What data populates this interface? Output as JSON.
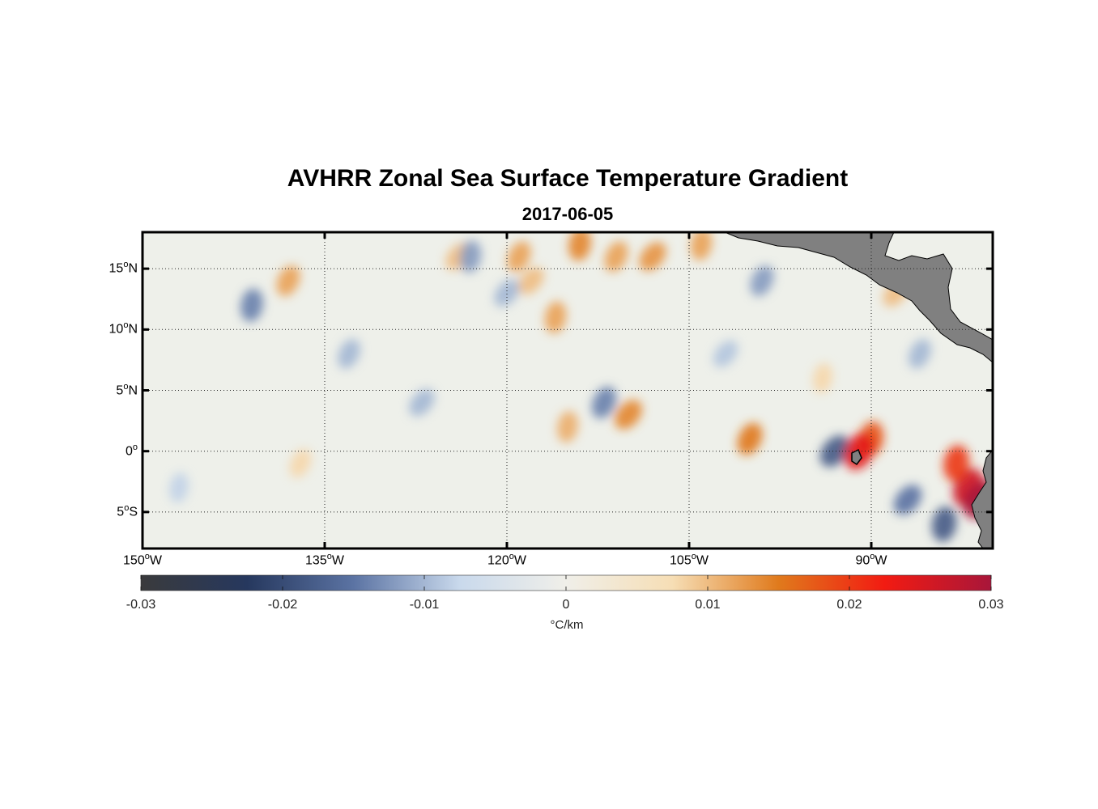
{
  "title": "AVHRR Zonal Sea Surface Temperature Gradient",
  "subtitle": "2017-06-05",
  "lat_axis": [
    {
      "deg": "15",
      "hemi": "N",
      "value": 15
    },
    {
      "deg": "10",
      "hemi": "N",
      "value": 10
    },
    {
      "deg": "5",
      "hemi": "N",
      "value": 5
    },
    {
      "deg": "0",
      "hemi": "",
      "value": 0
    },
    {
      "deg": "5",
      "hemi": "S",
      "value": -5
    }
  ],
  "lon_axis": [
    {
      "deg": "150",
      "hemi": "W",
      "value": -150
    },
    {
      "deg": "135",
      "hemi": "W",
      "value": -135
    },
    {
      "deg": "120",
      "hemi": "W",
      "value": -120
    },
    {
      "deg": "105",
      "hemi": "W",
      "value": -105
    },
    {
      "deg": "90",
      "hemi": "W",
      "value": -90
    }
  ],
  "map_extent": {
    "lon_min": -150,
    "lon_max": -80,
    "lat_min": -8,
    "lat_max": 18
  },
  "colorbar": {
    "ticks": [
      "-0.03",
      "-0.02",
      "-0.01",
      "0",
      "0.01",
      "0.02",
      "0.03"
    ],
    "tick_values": [
      -0.03,
      -0.02,
      -0.01,
      0,
      0.01,
      0.02,
      0.03
    ],
    "unit": "°C/km",
    "stops": [
      "#3a3a3c",
      "#26385e",
      "#5b73a3",
      "#c9d9ec",
      "#f0efe9",
      "#f6deb5",
      "#e07a1c",
      "#f21b12",
      "#a8163a"
    ]
  },
  "colors": {
    "land": "#808080",
    "ocean_bg": "#eef0ea",
    "grid": "#222222"
  },
  "features": [
    {
      "lon": -141,
      "lat": 12,
      "v": -0.014
    },
    {
      "lon": -138,
      "lat": 14,
      "v": 0.012
    },
    {
      "lon": -124,
      "lat": 16,
      "v": 0.01
    },
    {
      "lon": -123,
      "lat": 16,
      "v": -0.012
    },
    {
      "lon": -119,
      "lat": 16,
      "v": 0.012
    },
    {
      "lon": -118,
      "lat": 14,
      "v": 0.01
    },
    {
      "lon": -114,
      "lat": 17,
      "v": 0.014
    },
    {
      "lon": -111,
      "lat": 16,
      "v": 0.012
    },
    {
      "lon": -108,
      "lat": 16,
      "v": 0.013
    },
    {
      "lon": -104,
      "lat": 17,
      "v": 0.012
    },
    {
      "lon": -99,
      "lat": 14,
      "v": -0.012
    },
    {
      "lon": -120,
      "lat": 13,
      "v": -0.01
    },
    {
      "lon": -116,
      "lat": 11,
      "v": 0.012
    },
    {
      "lon": -112,
      "lat": 4,
      "v": -0.014
    },
    {
      "lon": -110,
      "lat": 3,
      "v": 0.014
    },
    {
      "lon": -115,
      "lat": 2,
      "v": 0.011
    },
    {
      "lon": -100,
      "lat": 1,
      "v": 0.015
    },
    {
      "lon": -93,
      "lat": 0,
      "v": -0.018
    },
    {
      "lon": -90,
      "lat": 1,
      "v": 0.018
    },
    {
      "lon": -91,
      "lat": 0,
      "v": 0.024
    },
    {
      "lon": -87,
      "lat": -4,
      "v": -0.015
    },
    {
      "lon": -84,
      "lat": -6,
      "v": -0.018
    },
    {
      "lon": -82,
      "lat": -3,
      "v": 0.026
    },
    {
      "lon": -81,
      "lat": -4,
      "v": 0.03
    },
    {
      "lon": -83,
      "lat": -1,
      "v": 0.02
    },
    {
      "lon": -133,
      "lat": 8,
      "v": -0.01
    },
    {
      "lon": -127,
      "lat": 4,
      "v": -0.01
    },
    {
      "lon": -147,
      "lat": -3,
      "v": -0.008
    },
    {
      "lon": -137,
      "lat": -1,
      "v": 0.008
    },
    {
      "lon": -102,
      "lat": 8,
      "v": -0.009
    },
    {
      "lon": -94,
      "lat": 6,
      "v": 0.008
    },
    {
      "lon": -86,
      "lat": 8,
      "v": -0.01
    },
    {
      "lon": -88,
      "lat": 13,
      "v": 0.01
    }
  ]
}
